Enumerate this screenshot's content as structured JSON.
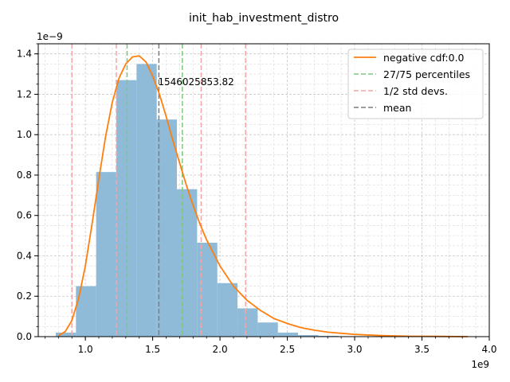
{
  "chart_data": {
    "type": "histogram",
    "title": "init_hab_investment_distro",
    "xlabel": "",
    "ylabel": "",
    "x_multiplier_label": "1e9",
    "y_multiplier_label": "1e−9",
    "xlim": [
      0.65,
      4.0
    ],
    "ylim": [
      0.0,
      1.45
    ],
    "x_ticks": [
      1.0,
      1.5,
      2.0,
      2.5,
      3.0,
      3.5,
      4.0
    ],
    "x_tick_labels": [
      "1.0",
      "1.5",
      "2.0",
      "2.5",
      "3.0",
      "3.5",
      "4.0"
    ],
    "y_ticks": [
      0.0,
      0.2,
      0.4,
      0.6,
      0.8,
      1.0,
      1.2,
      1.4
    ],
    "y_tick_labels": [
      "0.0",
      "0.2",
      "0.4",
      "0.6",
      "0.8",
      "1.0",
      "1.2",
      "1.4"
    ],
    "grid": true,
    "legend_position": "top-right",
    "bars": {
      "color": "#8fbbd9",
      "edges": [
        0.78,
        0.93,
        1.08,
        1.23,
        1.38,
        1.53,
        1.68,
        1.83,
        1.98,
        2.13,
        2.28,
        2.43,
        2.58,
        2.73,
        2.88,
        3.03
      ],
      "values": [
        0.02,
        0.25,
        0.815,
        1.27,
        1.35,
        1.075,
        0.73,
        0.465,
        0.265,
        0.14,
        0.07,
        0.02,
        0.008,
        0.004,
        0.002
      ]
    },
    "curve": {
      "name": "negative cdf:0.0",
      "color": "#ff7f0e",
      "x": [
        0.8,
        0.85,
        0.9,
        0.95,
        1.0,
        1.05,
        1.1,
        1.15,
        1.2,
        1.25,
        1.3,
        1.35,
        1.4,
        1.45,
        1.5,
        1.55,
        1.6,
        1.65,
        1.7,
        1.75,
        1.8,
        1.85,
        1.9,
        2.0,
        2.1,
        2.2,
        2.3,
        2.4,
        2.5,
        2.6,
        2.7,
        2.8,
        3.0,
        3.2,
        3.4,
        3.6,
        3.84
      ],
      "y": [
        0.005,
        0.025,
        0.08,
        0.19,
        0.35,
        0.56,
        0.78,
        0.99,
        1.16,
        1.28,
        1.35,
        1.385,
        1.39,
        1.36,
        1.29,
        1.2,
        1.09,
        0.97,
        0.86,
        0.75,
        0.65,
        0.56,
        0.48,
        0.35,
        0.25,
        0.18,
        0.13,
        0.09,
        0.065,
        0.045,
        0.032,
        0.022,
        0.011,
        0.005,
        0.002,
        0.001,
        0.0
      ]
    },
    "percentile_lines": {
      "name": "27/75 percentiles",
      "color": "#7fc97f",
      "x": [
        1.31,
        1.72
      ]
    },
    "std_lines": {
      "name": "1/2 std devs.",
      "color": "#f4a6a6",
      "x": [
        0.9,
        1.23,
        1.86,
        2.19
      ]
    },
    "mean_line": {
      "name": "mean",
      "color": "#7f7f7f",
      "x": 1.546
    },
    "annotation": {
      "text": "1546025853.82",
      "x": 1.546,
      "y": 1.26
    }
  }
}
